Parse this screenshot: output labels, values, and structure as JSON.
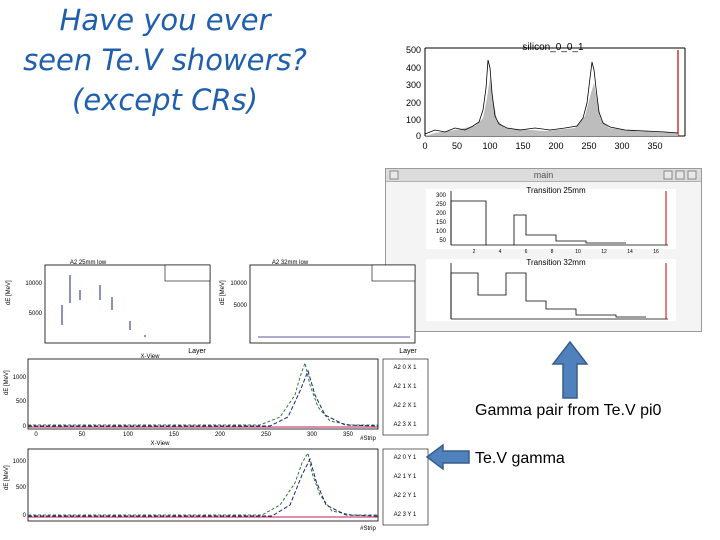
{
  "title": {
    "line1": "Have you ever",
    "line2": "seen Te.V showers?",
    "line3": "(except CRs)"
  },
  "top_plot": {
    "title": "silicon_0_0_1",
    "y_ticks": [
      "500",
      "400",
      "300",
      "200",
      "100",
      "0"
    ],
    "x_ticks": [
      "0",
      "50",
      "100",
      "150",
      "200",
      "250",
      "300",
      "350"
    ],
    "line_color": "#000000",
    "marker_color": "#cc0000"
  },
  "main_window": {
    "title": "main",
    "plot1_title": "Transition 25mm",
    "plot2_title": "Transition 32mm",
    "y_ticks": [
      "300",
      "250",
      "200",
      "150",
      "100",
      "50"
    ],
    "x_ticks": [
      "2",
      "4",
      "6",
      "8",
      "10",
      "12",
      "14",
      "16"
    ]
  },
  "layer_plots": {
    "left_title": "A2 25mm low",
    "right_title": "A2 32mm low",
    "ylabel": "dE [MeV]",
    "xlabel": "Layer",
    "subtitle": "X-View",
    "left_y_ticks": [
      "10000",
      "5000"
    ],
    "right_y_ticks": [
      "10000",
      "5000"
    ],
    "x_ticks": [
      "0",
      "2",
      "4",
      "6",
      "8",
      "10",
      "12",
      "14",
      "16"
    ]
  },
  "strip_plots": {
    "ylabel": "dE [MeV]",
    "xlabel": "#Strip",
    "view_x": "X-View",
    "y_ticks_x": [
      "1000",
      "500",
      "0"
    ],
    "y_ticks_y": [
      "1000",
      "500",
      "0"
    ],
    "x_ticks": [
      "0",
      "50",
      "100",
      "150",
      "200",
      "250",
      "300",
      "350"
    ],
    "legend_x": [
      "A2 0 X 1",
      "A2 1 X 1",
      "A2 2 X 1",
      "A2 3 X 1"
    ],
    "legend_y": [
      "A2 0 Y 1",
      "A2 1 Y 1",
      "A2 2 Y 1",
      "A2 3 Y 1"
    ],
    "series_colors": [
      "#2e7d32",
      "#1a237e",
      "#000000",
      "#c2185b"
    ]
  },
  "annotations": {
    "gamma_pair": "Gamma pair from Te.V pi0",
    "tev_gamma": "Te.V gamma",
    "arrow_color": "#4f81bd"
  }
}
